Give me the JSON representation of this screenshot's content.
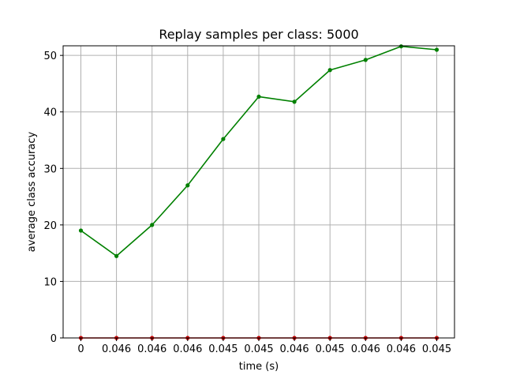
{
  "chart_data": {
    "type": "line",
    "title": "Replay samples per class: 5000",
    "xlabel": "time (s)",
    "ylabel": "average class accuracy",
    "categories": [
      "0",
      "0.046",
      "0.046",
      "0.046",
      "0.045",
      "0.045",
      "0.046",
      "0.045",
      "0.046",
      "0.046",
      "0.045"
    ],
    "ylim": [
      0,
      51.7
    ],
    "yticks": [
      0,
      10,
      20,
      30,
      40,
      50
    ],
    "grid": true,
    "legend": "none",
    "series": [
      {
        "color": "#008000",
        "values": [
          19.0,
          14.5,
          20.0,
          27.0,
          35.2,
          42.7,
          41.8,
          47.4,
          49.2,
          51.6,
          51.0
        ]
      },
      {
        "color": "#cc0000",
        "values": [
          0,
          0,
          0,
          0,
          0,
          0,
          0,
          0,
          0,
          0,
          0
        ]
      }
    ]
  }
}
